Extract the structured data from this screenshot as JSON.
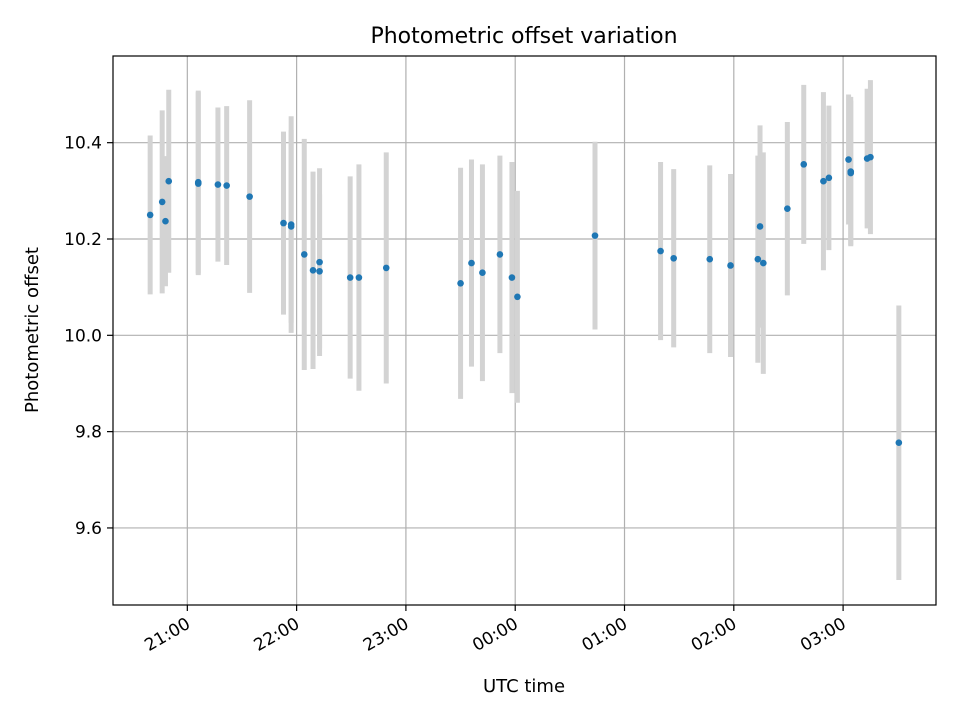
{
  "chart_data": {
    "type": "scatter",
    "title": "Photometric offset variation",
    "xlabel": "UTC time",
    "ylabel": "Photometric offset",
    "x_unit": "hours since 00:00 UTC (negative = previous evening)",
    "xlim": [
      -3.68,
      3.85
    ],
    "ylim": [
      9.44,
      10.58
    ],
    "x_ticks": [
      {
        "value": -3,
        "label": "21:00"
      },
      {
        "value": -2,
        "label": "22:00"
      },
      {
        "value": -1,
        "label": "23:00"
      },
      {
        "value": 0,
        "label": "00:00"
      },
      {
        "value": 1,
        "label": "01:00"
      },
      {
        "value": 2,
        "label": "02:00"
      },
      {
        "value": 3,
        "label": "03:00"
      }
    ],
    "y_ticks": [
      {
        "value": 9.6,
        "label": "9.6"
      },
      {
        "value": 9.8,
        "label": "9.8"
      },
      {
        "value": 10.0,
        "label": "10.0"
      },
      {
        "value": 10.2,
        "label": "10.2"
      },
      {
        "value": 10.4,
        "label": "10.4"
      }
    ],
    "grid": true,
    "colors": {
      "points": "#1f77b4",
      "errorbars": "#d3d3d3",
      "grid": "#b0b0b0",
      "frame": "#000000"
    },
    "series": [
      {
        "points": [
          {
            "x": -3.34,
            "y": 10.25,
            "err": 0.165
          },
          {
            "x": -3.23,
            "y": 10.277,
            "err": 0.19
          },
          {
            "x": -3.2,
            "y": 10.237,
            "err": 0.135
          },
          {
            "x": -3.17,
            "y": 10.32,
            "err": 0.19
          },
          {
            "x": -2.9,
            "y": 10.318,
            "err": 0.19
          },
          {
            "x": -2.9,
            "y": 10.315,
            "err": 0.19
          },
          {
            "x": -2.72,
            "y": 10.313,
            "err": 0.16
          },
          {
            "x": -2.64,
            "y": 10.311,
            "err": 0.165
          },
          {
            "x": -2.43,
            "y": 10.288,
            "err": 0.2
          },
          {
            "x": -2.12,
            "y": 10.233,
            "err": 0.19
          },
          {
            "x": -2.05,
            "y": 10.23,
            "err": 0.225
          },
          {
            "x": -2.05,
            "y": 10.226,
            "err": 0.2
          },
          {
            "x": -1.93,
            "y": 10.168,
            "err": 0.24
          },
          {
            "x": -1.85,
            "y": 10.135,
            "err": 0.205
          },
          {
            "x": -1.79,
            "y": 10.133,
            "err": 0.16
          },
          {
            "x": -1.79,
            "y": 10.152,
            "err": 0.195
          },
          {
            "x": -1.51,
            "y": 10.12,
            "err": 0.21
          },
          {
            "x": -1.43,
            "y": 10.12,
            "err": 0.235
          },
          {
            "x": -1.18,
            "y": 10.14,
            "err": 0.24
          },
          {
            "x": -0.5,
            "y": 10.108,
            "err": 0.24
          },
          {
            "x": -0.4,
            "y": 10.15,
            "err": 0.215
          },
          {
            "x": -0.3,
            "y": 10.13,
            "err": 0.225
          },
          {
            "x": -0.14,
            "y": 10.168,
            "err": 0.205
          },
          {
            "x": -0.03,
            "y": 10.12,
            "err": 0.24
          },
          {
            "x": 0.02,
            "y": 10.08,
            "err": 0.22
          },
          {
            "x": 0.73,
            "y": 10.207,
            "err": 0.195
          },
          {
            "x": 1.33,
            "y": 10.175,
            "err": 0.185
          },
          {
            "x": 1.45,
            "y": 10.16,
            "err": 0.185
          },
          {
            "x": 1.78,
            "y": 10.158,
            "err": 0.195
          },
          {
            "x": 1.97,
            "y": 10.145,
            "err": 0.19
          },
          {
            "x": 2.22,
            "y": 10.158,
            "err": 0.215
          },
          {
            "x": 2.24,
            "y": 10.226,
            "err": 0.21
          },
          {
            "x": 2.27,
            "y": 10.15,
            "err": 0.23
          },
          {
            "x": 2.49,
            "y": 10.263,
            "err": 0.18
          },
          {
            "x": 2.64,
            "y": 10.355,
            "err": 0.165
          },
          {
            "x": 2.82,
            "y": 10.32,
            "err": 0.185
          },
          {
            "x": 2.87,
            "y": 10.327,
            "err": 0.15
          },
          {
            "x": 3.05,
            "y": 10.365,
            "err": 0.135
          },
          {
            "x": 3.07,
            "y": 10.337,
            "err": 0.15
          },
          {
            "x": 3.07,
            "y": 10.34,
            "err": 0.155
          },
          {
            "x": 3.22,
            "y": 10.367,
            "err": 0.145
          },
          {
            "x": 3.25,
            "y": 10.37,
            "err": 0.16
          },
          {
            "x": 3.51,
            "y": 9.777,
            "err": 0.285
          }
        ]
      }
    ]
  }
}
